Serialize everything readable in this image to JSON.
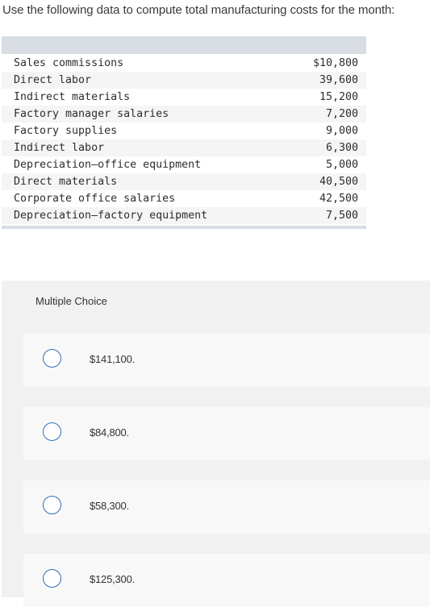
{
  "question": {
    "text": "Use the following data to compute total manufacturing costs for the month:"
  },
  "cost_table": {
    "rows": [
      {
        "label": "Sales commissions",
        "value": "$10,800"
      },
      {
        "label": "Direct labor",
        "value": "39,600"
      },
      {
        "label": "Indirect materials",
        "value": "15,200"
      },
      {
        "label": "Factory manager salaries",
        "value": "7,200"
      },
      {
        "label": "Factory supplies",
        "value": "9,000"
      },
      {
        "label": "Indirect labor",
        "value": "6,300"
      },
      {
        "label": "Depreciation—office equipment",
        "value": "5,000"
      },
      {
        "label": "Direct materials",
        "value": "40,500"
      },
      {
        "label": "Corporate office salaries",
        "value": "42,500"
      },
      {
        "label": "Depreciation—factory equipment",
        "value": "7,500"
      }
    ]
  },
  "choices": {
    "heading": "Multiple Choice",
    "options": [
      {
        "label": "$141,100."
      },
      {
        "label": "$84,800."
      },
      {
        "label": "$58,300."
      },
      {
        "label": "$125,300."
      }
    ]
  },
  "colors": {
    "radio_border": "#2d6fb7",
    "table_bar": "#d8dde4",
    "panel_background": "#f1f1f1"
  }
}
